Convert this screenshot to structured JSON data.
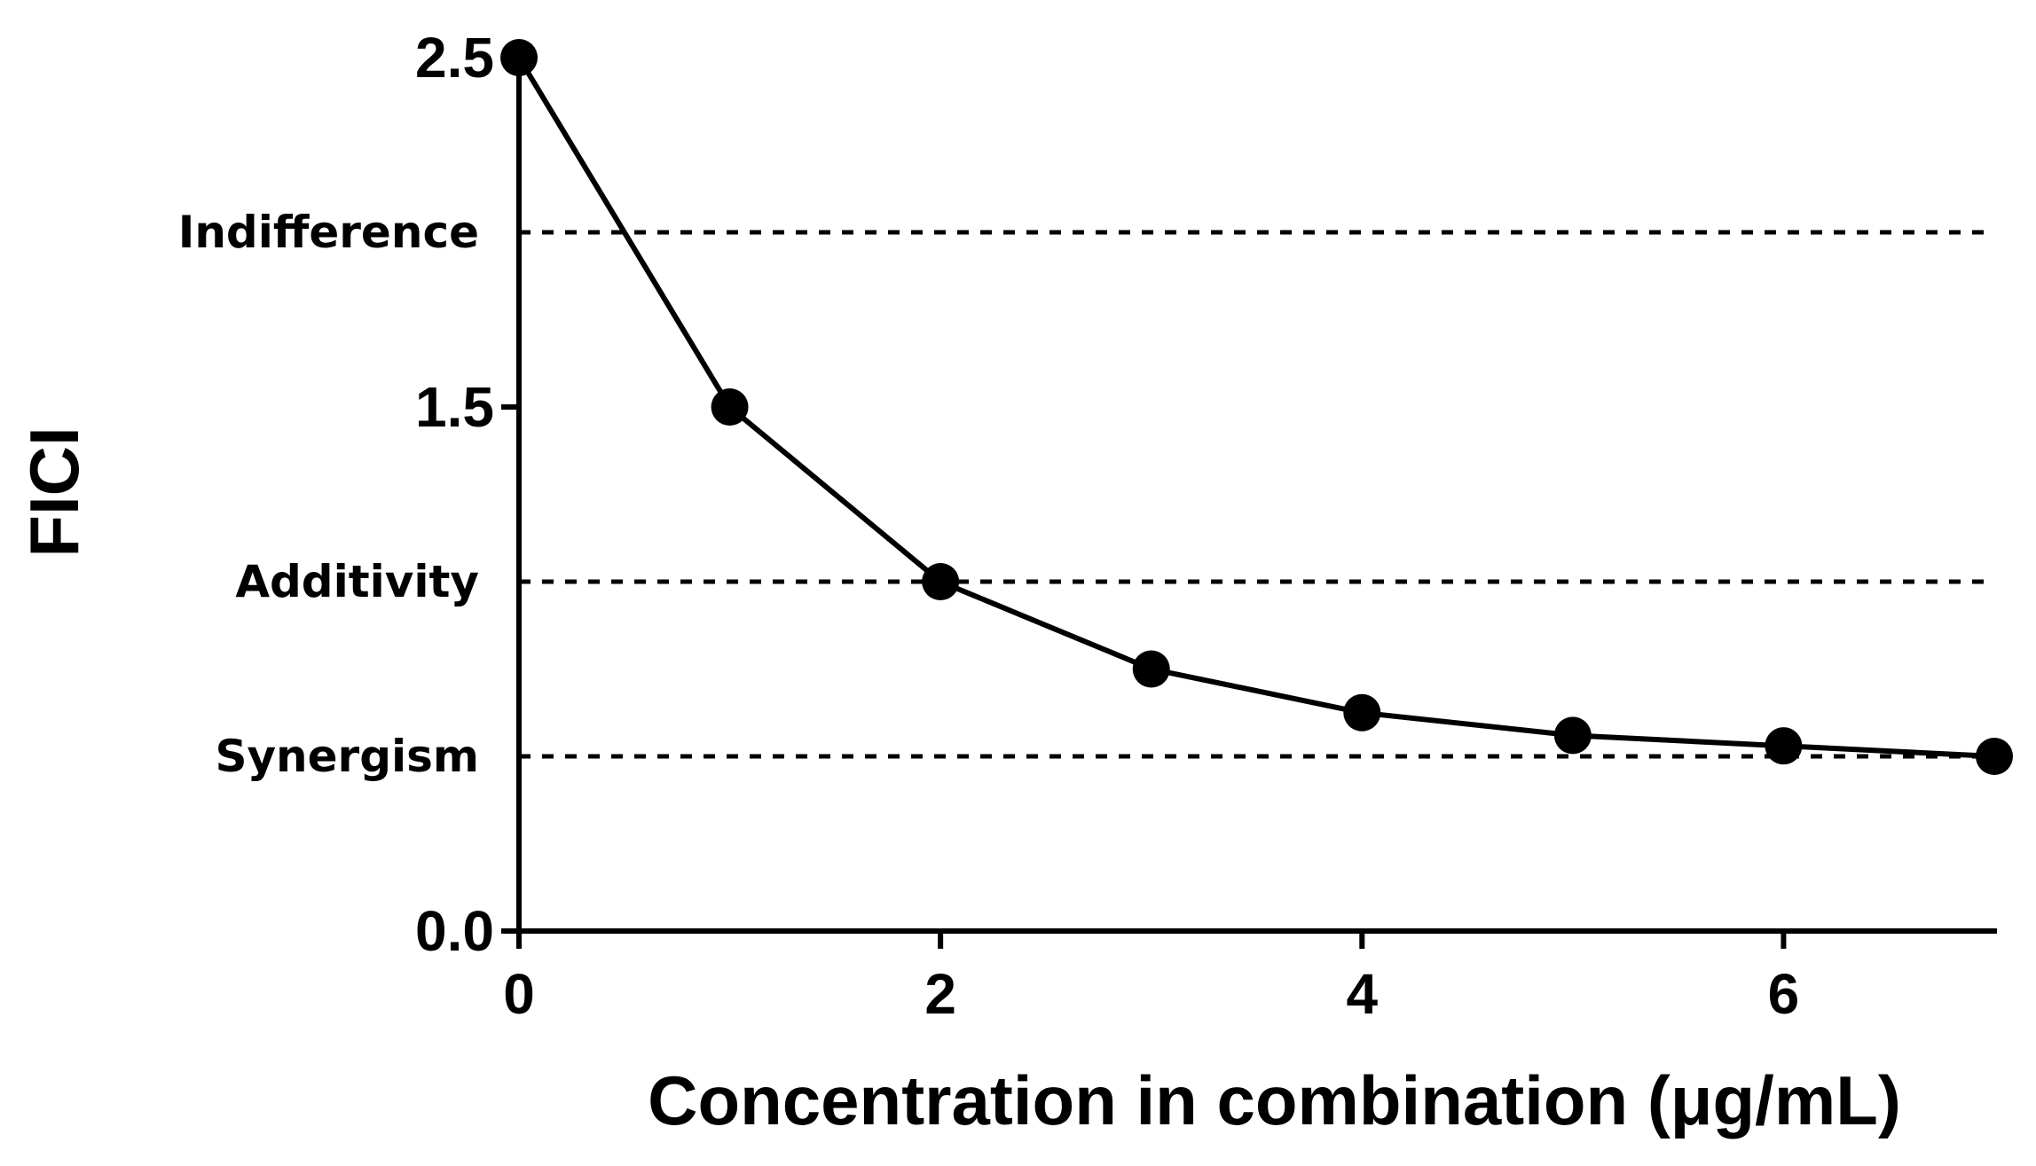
{
  "chart_data": {
    "type": "line",
    "xlabel": "Concentration in combination (μg/mL)",
    "ylabel": "FICI",
    "xlim": [
      0,
      7
    ],
    "ylim": [
      0,
      2.5
    ],
    "x_ticks": [
      0,
      2,
      4,
      6
    ],
    "y_ticks": [
      0.0,
      1.5,
      2.5
    ],
    "x_tick_labels": [
      "0",
      "2",
      "4",
      "6"
    ],
    "y_tick_labels": [
      "0.0",
      "1.5",
      "2.5"
    ],
    "grid": false,
    "legend": "none",
    "reference_lines": [
      {
        "label": "Indifference",
        "y": 2.0,
        "style": "dotted"
      },
      {
        "label": "Additivity",
        "y": 1.0,
        "style": "dotted"
      },
      {
        "label": "Synergism",
        "y": 0.5,
        "style": "dotted"
      }
    ],
    "series": [
      {
        "x": [
          0,
          1,
          2,
          3,
          4,
          5,
          6,
          7
        ],
        "y": [
          2.5,
          1.5,
          1.0,
          0.75,
          0.625,
          0.56,
          0.53,
          0.5
        ],
        "color": "#000000",
        "marker": "circle"
      }
    ]
  }
}
